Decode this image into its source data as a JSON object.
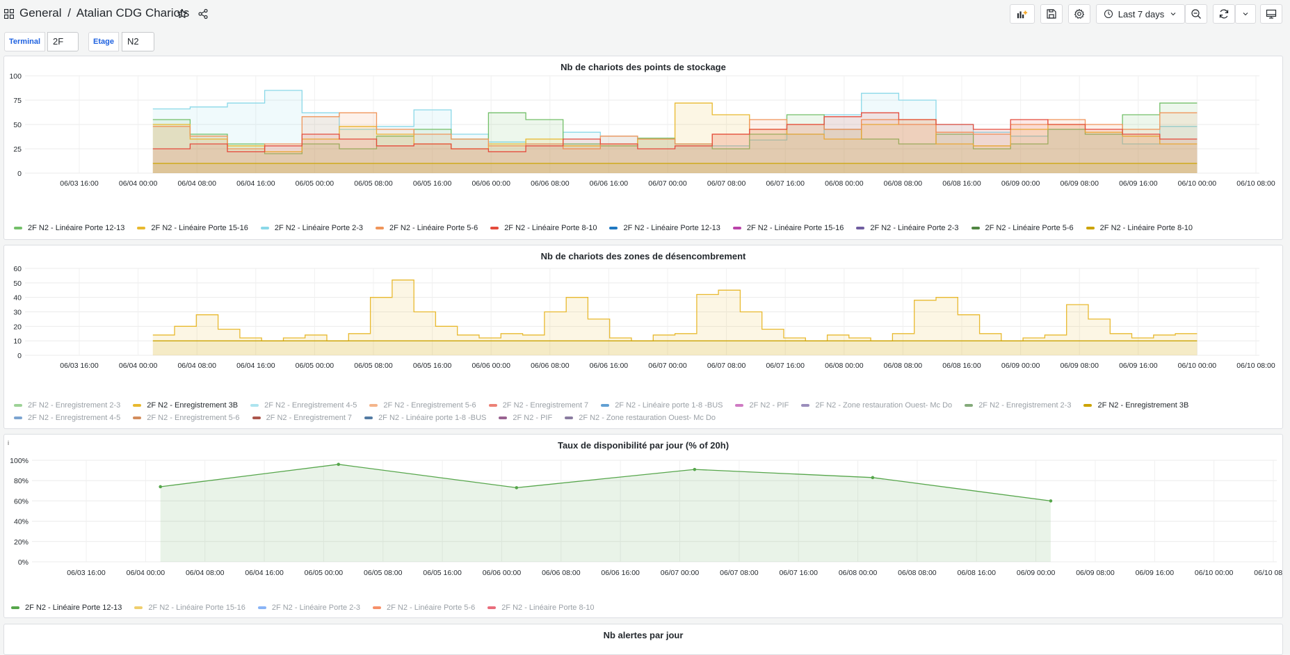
{
  "header": {
    "breadcrumb_root": "General",
    "breadcrumb_sep": "/",
    "dashboard_title": "Atalian CDG Chariots",
    "time_range": "Last 7 days"
  },
  "variables": [
    {
      "label": "Terminal",
      "value": "2F"
    },
    {
      "label": "Etage",
      "value": "N2"
    }
  ],
  "panels": {
    "storage": {
      "title": "Nb de chariots des points de stockage",
      "legend": [
        {
          "name": "2F N2 - Linéaire Porte 12-13",
          "color": "#73bf69",
          "dim": false
        },
        {
          "name": "2F N2 - Linéaire Porte 15-16",
          "color": "#e8b92f",
          "dim": false
        },
        {
          "name": "2F N2 - Linéaire Porte 2-3",
          "color": "#8ad8e8",
          "dim": false
        },
        {
          "name": "2F N2 - Linéaire Porte 5-6",
          "color": "#f0955a",
          "dim": false
        },
        {
          "name": "2F N2 - Linéaire Porte 8-10",
          "color": "#e44b3c",
          "dim": false
        },
        {
          "name": "2F N2 - Linéaire Porte 12-13",
          "color": "#1f78c1",
          "dim": false
        },
        {
          "name": "2F N2 - Linéaire Porte 15-16",
          "color": "#ba43a9",
          "dim": false
        },
        {
          "name": "2F N2 - Linéaire Porte 2-3",
          "color": "#705da0",
          "dim": false
        },
        {
          "name": "2F N2 - Linéaire Porte 5-6",
          "color": "#508642",
          "dim": false
        },
        {
          "name": "2F N2 - Linéaire Porte 8-10",
          "color": "#cca300",
          "dim": false
        }
      ]
    },
    "clearing": {
      "title": "Nb de chariots des zones de désencombrement",
      "legend": [
        {
          "name": "2F N2 - Enregistrement 2-3",
          "color": "#73bf69",
          "dim": true
        },
        {
          "name": "2F N2 - Enregistrement 3B",
          "color": "#e8b92f",
          "dim": false
        },
        {
          "name": "2F N2 - Enregistrement 4-5",
          "color": "#8ad8e8",
          "dim": true
        },
        {
          "name": "2F N2 - Enregistrement 5-6",
          "color": "#f0955a",
          "dim": true
        },
        {
          "name": "2F N2 - Enregistrement 7",
          "color": "#e44b3c",
          "dim": true
        },
        {
          "name": "2F N2 - Linéaire porte 1-8 -BUS",
          "color": "#1f78c1",
          "dim": true
        },
        {
          "name": "2F N2 - PIF",
          "color": "#ba43a9",
          "dim": true
        },
        {
          "name": "2F N2 - Zone restauration Ouest- Mc Do",
          "color": "#705da0",
          "dim": true
        },
        {
          "name": "2F N2 - Enregistrement 2-3",
          "color": "#508642",
          "dim": true
        },
        {
          "name": "2F N2 - Enregistrement 3B",
          "color": "#cca300",
          "dim": false
        },
        {
          "name": "2F N2 - Enregistrement 4-5",
          "color": "#447ebc",
          "dim": true
        },
        {
          "name": "2F N2 - Enregistrement 5-6",
          "color": "#c15c17",
          "dim": true
        },
        {
          "name": "2F N2 - Enregistrement 7",
          "color": "#890f02",
          "dim": true
        },
        {
          "name": "2F N2 - Linéaire porte 1-8 -BUS",
          "color": "#0a437c",
          "dim": true
        },
        {
          "name": "2F N2 - PIF",
          "color": "#6d1f62",
          "dim": true
        },
        {
          "name": "2F N2 - Zone restauration Ouest- Mc Do",
          "color": "#584477",
          "dim": true
        }
      ]
    },
    "availability": {
      "title": "Taux de disponibilité par jour (% of 20h)",
      "info": "i",
      "legend": [
        {
          "name": "2F N2 - Linéaire Porte 12-13",
          "color": "#56a64b",
          "dim": false
        },
        {
          "name": "2F N2 - Linéaire Porte 15-16",
          "color": "#e8b92f",
          "dim": true
        },
        {
          "name": "2F N2 - Linéaire Porte 2-3",
          "color": "#5794f2",
          "dim": true
        },
        {
          "name": "2F N2 - Linéaire Porte 5-6",
          "color": "#f2612a",
          "dim": true
        },
        {
          "name": "2F N2 - Linéaire Porte 8-10",
          "color": "#e02f44",
          "dim": true
        }
      ]
    },
    "alerts": {
      "title": "Nb alertes par jour"
    }
  },
  "chart_data": [
    {
      "type": "area",
      "title": "Nb de chariots des points de stockage",
      "x_ticks": [
        "06/03 16:00",
        "06/04 00:00",
        "06/04 08:00",
        "06/04 16:00",
        "06/05 00:00",
        "06/05 08:00",
        "06/05 16:00",
        "06/06 00:00",
        "06/06 08:00",
        "06/06 16:00",
        "06/07 00:00",
        "06/07 08:00",
        "06/07 16:00",
        "06/08 00:00",
        "06/08 08:00",
        "06/08 16:00",
        "06/09 00:00",
        "06/09 08:00",
        "06/09 16:00",
        "06/10 00:00",
        "06/10 08:00"
      ],
      "y_ticks": [
        "0",
        "25",
        "50",
        "75",
        "100"
      ],
      "ylim": [
        0,
        100
      ],
      "x_range": [
        "06/04 02:00",
        "06/10 00:00"
      ],
      "series": [
        {
          "name": "2F N2 - Linéaire Porte 2-3",
          "color": "#8ad8e8",
          "values": [
            66,
            68,
            72,
            85,
            62,
            45,
            48,
            65,
            40,
            32,
            30,
            42,
            38,
            35,
            30,
            28,
            34,
            40,
            60,
            82,
            75,
            50,
            42,
            38,
            45,
            40,
            30,
            48
          ]
        },
        {
          "name": "2F N2 - Linéaire Porte 12-13",
          "color": "#73bf69",
          "values": [
            55,
            40,
            30,
            20,
            30,
            25,
            38,
            45,
            35,
            62,
            55,
            30,
            28,
            36,
            30,
            25,
            40,
            60,
            45,
            35,
            30,
            40,
            25,
            30,
            45,
            40,
            60,
            72
          ]
        },
        {
          "name": "2F N2 - Linéaire Porte 15-16",
          "color": "#e8b92f",
          "values": [
            50,
            35,
            28,
            22,
            35,
            48,
            40,
            30,
            25,
            30,
            35,
            28,
            30,
            35,
            72,
            60,
            45,
            40,
            35,
            50,
            55,
            30,
            28,
            45,
            50,
            42,
            38,
            30
          ]
        },
        {
          "name": "2F N2 - Linéaire Porte 5-6",
          "color": "#f0955a",
          "values": [
            48,
            38,
            25,
            30,
            58,
            62,
            45,
            40,
            35,
            28,
            30,
            25,
            38,
            35,
            30,
            40,
            55,
            50,
            45,
            55,
            50,
            42,
            40,
            50,
            55,
            50,
            45,
            62
          ]
        },
        {
          "name": "2F N2 - Linéaire Porte 8-10",
          "color": "#e44b3c",
          "values": [
            25,
            30,
            22,
            28,
            40,
            35,
            28,
            30,
            25,
            22,
            28,
            35,
            30,
            25,
            28,
            40,
            45,
            50,
            58,
            62,
            55,
            50,
            45,
            55,
            50,
            45,
            40,
            35
          ]
        },
        {
          "name": "2F N2 - Linéaire Porte 8-10",
          "color": "#cca300",
          "values": [
            10,
            10,
            10,
            10,
            10,
            10,
            10,
            10,
            10,
            10,
            10,
            10,
            10,
            10,
            10,
            10,
            10,
            10,
            10,
            10,
            10,
            10,
            10,
            10,
            10,
            10,
            10,
            10
          ]
        }
      ]
    },
    {
      "type": "area",
      "title": "Nb de chariots des zones de désencombrement",
      "x_ticks": [
        "06/03 16:00",
        "06/04 00:00",
        "06/04 08:00",
        "06/04 16:00",
        "06/05 00:00",
        "06/05 08:00",
        "06/05 16:00",
        "06/06 00:00",
        "06/06 08:00",
        "06/06 16:00",
        "06/07 00:00",
        "06/07 08:00",
        "06/07 16:00",
        "06/08 00:00",
        "06/08 08:00",
        "06/08 16:00",
        "06/09 00:00",
        "06/09 08:00",
        "06/09 16:00",
        "06/10 00:00",
        "06/10 08:00"
      ],
      "y_ticks": [
        "0",
        "10",
        "20",
        "30",
        "40",
        "50",
        "60"
      ],
      "ylim": [
        0,
        60
      ],
      "x_range": [
        "06/04 02:00",
        "06/10 00:00"
      ],
      "series": [
        {
          "name": "2F N2 - Enregistrement 3B",
          "color": "#e8b92f",
          "values": [
            14,
            20,
            28,
            18,
            12,
            10,
            12,
            14,
            10,
            15,
            40,
            52,
            30,
            20,
            14,
            12,
            15,
            14,
            30,
            40,
            25,
            12,
            10,
            14,
            15,
            42,
            45,
            30,
            18,
            12,
            10,
            14,
            12,
            10,
            15,
            38,
            40,
            28,
            15,
            10,
            12,
            14,
            35,
            25,
            15,
            12,
            14,
            15
          ]
        },
        {
          "name": "2F N2 - Enregistrement 3B",
          "color": "#cca300",
          "values": [
            10,
            10,
            10,
            10,
            10,
            10,
            10,
            10,
            10,
            10,
            10,
            10,
            10,
            10,
            10,
            10,
            10,
            10,
            10,
            10,
            10,
            10,
            10,
            10,
            10,
            10,
            10,
            10,
            10,
            10,
            10,
            10,
            10,
            10,
            10,
            10,
            10,
            10,
            10,
            10,
            10,
            10,
            10,
            10,
            10,
            10,
            10,
            10
          ]
        }
      ]
    },
    {
      "type": "area",
      "title": "Taux de disponibilité par jour (% of 20h)",
      "x_ticks": [
        "06/03 16:00",
        "06/04 00:00",
        "06/04 08:00",
        "06/04 16:00",
        "06/05 00:00",
        "06/05 08:00",
        "06/05 16:00",
        "06/06 00:00",
        "06/06 08:00",
        "06/06 16:00",
        "06/07 00:00",
        "06/07 08:00",
        "06/07 16:00",
        "06/08 00:00",
        "06/08 08:00",
        "06/08 16:00",
        "06/09 00:00",
        "06/09 08:00",
        "06/09 16:00",
        "06/10 00:00",
        "06/10 08:00"
      ],
      "y_ticks": [
        "0%",
        "20%",
        "40%",
        "60%",
        "80%",
        "100%"
      ],
      "ylim": [
        0,
        100
      ],
      "series": [
        {
          "name": "2F N2 - Linéaire Porte 12-13",
          "color": "#56a64b",
          "points": [
            [
              "06/04 02:00",
              74
            ],
            [
              "06/05 02:00",
              96
            ],
            [
              "06/06 02:00",
              73
            ],
            [
              "06/07 02:00",
              91
            ],
            [
              "06/08 02:00",
              83
            ],
            [
              "06/09 02:00",
              60
            ]
          ]
        }
      ]
    }
  ]
}
